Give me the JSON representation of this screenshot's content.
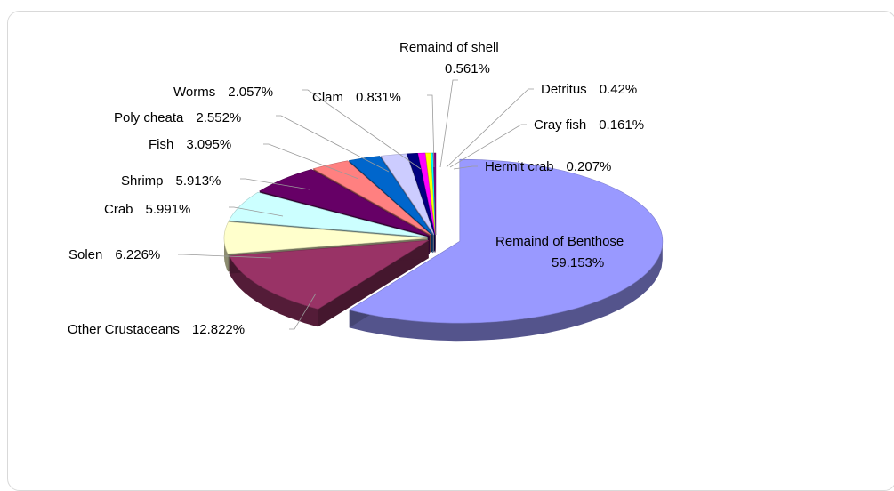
{
  "chart_data": {
    "type": "pie",
    "title": "",
    "style": "3d-exploded",
    "slices": [
      {
        "label": "Remaind of Benthose",
        "value_label": "59.153%",
        "value": 59.153,
        "color": "#9999ff"
      },
      {
        "label": "Other Crustaceans",
        "value_label": "12.822%",
        "value": 12.822,
        "color": "#993366"
      },
      {
        "label": "Solen",
        "value_label": "6.226%",
        "value": 6.226,
        "color": "#ffffcc"
      },
      {
        "label": "Crab",
        "value_label": "5.991%",
        "value": 5.991,
        "color": "#ccffff"
      },
      {
        "label": "Shrimp",
        "value_label": "5.913%",
        "value": 5.913,
        "color": "#660066"
      },
      {
        "label": "Fish",
        "value_label": "3.095%",
        "value": 3.095,
        "color": "#ff8080"
      },
      {
        "label": "Poly cheata",
        "value_label": "2.552%",
        "value": 2.552,
        "color": "#0066cc"
      },
      {
        "label": "Worms",
        "value_label": "2.057%",
        "value": 2.057,
        "color": "#ccccff"
      },
      {
        "label": "Clam",
        "value_label": "0.831%",
        "value": 0.831,
        "color": "#000080"
      },
      {
        "label": "Remaind of shell",
        "value_label": "0.561%",
        "value": 0.561,
        "color": "#ff00ff"
      },
      {
        "label": "Detritus",
        "value_label": "0.42%",
        "value": 0.42,
        "color": "#ffff00"
      },
      {
        "label": "Cray fish",
        "value_label": "0.161%",
        "value": 0.161,
        "color": "#00ffff"
      },
      {
        "label": "Hermit crab",
        "value_label": "0.207%",
        "value": 0.207,
        "color": "#800080"
      }
    ]
  }
}
